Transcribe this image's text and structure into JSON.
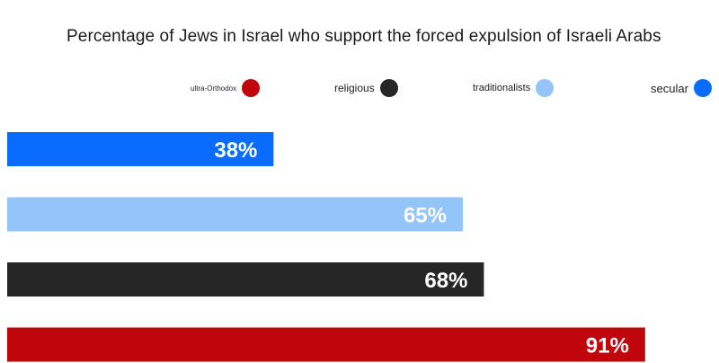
{
  "chart_data": {
    "type": "bar",
    "orientation": "horizontal",
    "title": "Percentage of Jews in Israel who support the forced expulsion of Israeli Arabs",
    "categories": [
      "secular",
      "traditionalists",
      "religious",
      "ultra-Orthodox"
    ],
    "values": [
      38,
      65,
      68,
      91
    ],
    "data_labels": [
      "38%",
      "65%",
      "68%",
      "91%"
    ],
    "colors": [
      "#0a6cff",
      "#93c4fa",
      "#262626",
      "#c0060c"
    ],
    "unit": "%",
    "xlim": [
      0,
      100
    ],
    "grid": false,
    "legend": {
      "placement": "top",
      "entries": [
        {
          "label": "ultra-Orthodox",
          "color": "#c0060c"
        },
        {
          "label": "religious",
          "color": "#262626"
        },
        {
          "label": "traditionalists",
          "color": "#93c4fa"
        },
        {
          "label": "secular",
          "color": "#0a6cff"
        }
      ]
    }
  }
}
